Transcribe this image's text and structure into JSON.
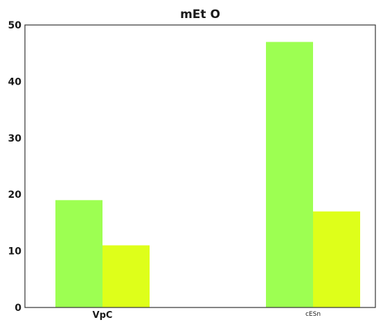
{
  "chart_data": {
    "type": "bar",
    "title": "mEt O",
    "xlabel": "",
    "ylabel": "",
    "categories": [
      "VpC",
      "cESn"
    ],
    "series": [
      {
        "values": [
          19,
          47
        ],
        "color": "#9dff52"
      },
      {
        "values": [
          11,
          17
        ],
        "color": "#deff1a"
      }
    ],
    "ylim": [
      0,
      50
    ],
    "yticks": [
      "0",
      "10",
      "20",
      "30",
      "40",
      "50"
    ],
    "grid": false,
    "legend": "none"
  }
}
